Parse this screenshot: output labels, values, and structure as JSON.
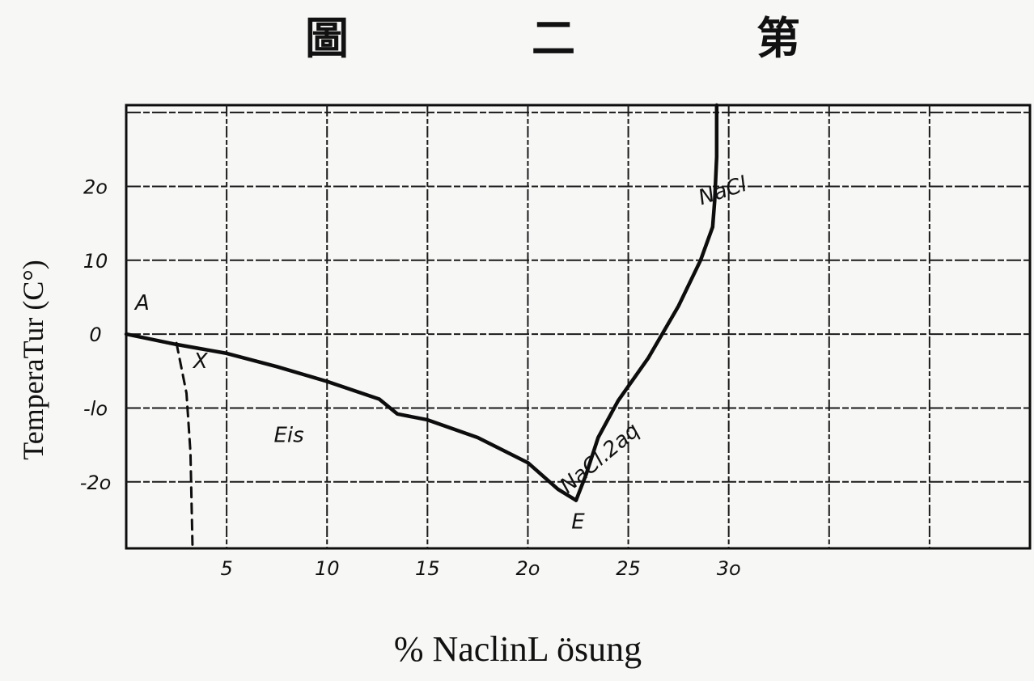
{
  "title": {
    "chars": [
      "圖",
      "二",
      "第"
    ]
  },
  "chart_data": {
    "type": "line",
    "xlabel": "% NaclinL   ösung",
    "ylabel": "TemperaTur (C°)",
    "xlim": [
      0,
      45
    ],
    "ylim": [
      -29,
      31
    ],
    "xticks": [
      {
        "value": 5,
        "label": "5"
      },
      {
        "value": 10,
        "label": "10"
      },
      {
        "value": 15,
        "label": "15"
      },
      {
        "value": 20,
        "label": "2o"
      },
      {
        "value": 25,
        "label": "25"
      },
      {
        "value": 30,
        "label": "3o"
      }
    ],
    "yticks": [
      {
        "value": 20,
        "label": "2o"
      },
      {
        "value": 10,
        "label": "10"
      },
      {
        "value": 0,
        "label": "0"
      },
      {
        "value": -10,
        "label": "-lo"
      },
      {
        "value": -20,
        "label": "-2o"
      }
    ],
    "grid": true,
    "series": [
      {
        "name": "Eis",
        "style": "solid",
        "points": [
          [
            0,
            0.0
          ],
          [
            2.5,
            -1.4
          ],
          [
            5,
            -2.6
          ],
          [
            7.5,
            -4.4
          ],
          [
            10,
            -6.4
          ],
          [
            12.6,
            -8.8
          ],
          [
            13.5,
            -10.8
          ],
          [
            15,
            -11.6
          ],
          [
            17.5,
            -14.0
          ],
          [
            20,
            -17.4
          ],
          [
            21.5,
            -21.0
          ],
          [
            22.4,
            -22.5
          ]
        ]
      },
      {
        "name": "NaCl.2aq",
        "style": "solid",
        "points": [
          [
            22.4,
            -22.5
          ],
          [
            22.9,
            -19.0
          ],
          [
            23.5,
            -14.0
          ],
          [
            24.5,
            -9.0
          ],
          [
            26,
            -3.2
          ],
          [
            27.5,
            3.8
          ],
          [
            28.6,
            10.0
          ],
          [
            29.2,
            14.5
          ]
        ]
      },
      {
        "name": "NaCl",
        "style": "solid",
        "points": [
          [
            29.2,
            14.5
          ],
          [
            29.3,
            18.0
          ],
          [
            29.4,
            24.0
          ],
          [
            29.4,
            31.0
          ]
        ]
      },
      {
        "name": "X",
        "style": "dashed",
        "points": [
          [
            2.5,
            -1.2
          ],
          [
            3.0,
            -8.0
          ],
          [
            3.2,
            -16.0
          ],
          [
            3.3,
            -28.5
          ]
        ]
      }
    ],
    "annotations": [
      {
        "text": "A",
        "x": 0.8,
        "y": 3.3
      },
      {
        "text": "X",
        "x": 3.7,
        "y": -4.6
      },
      {
        "text": "Eis",
        "x": 8.1,
        "y": -14.6
      },
      {
        "text": "E",
        "x": 22.5,
        "y": -26.3
      },
      {
        "text": "NaCl.2aq",
        "x": 23.8,
        "y": -17.5
      },
      {
        "text": "NaCl",
        "x": 29.8,
        "y": 18.5
      }
    ],
    "colors": {
      "line": "#0d0d0d",
      "grid": "#1a1a1a",
      "background": "#f7f7f5"
    }
  }
}
